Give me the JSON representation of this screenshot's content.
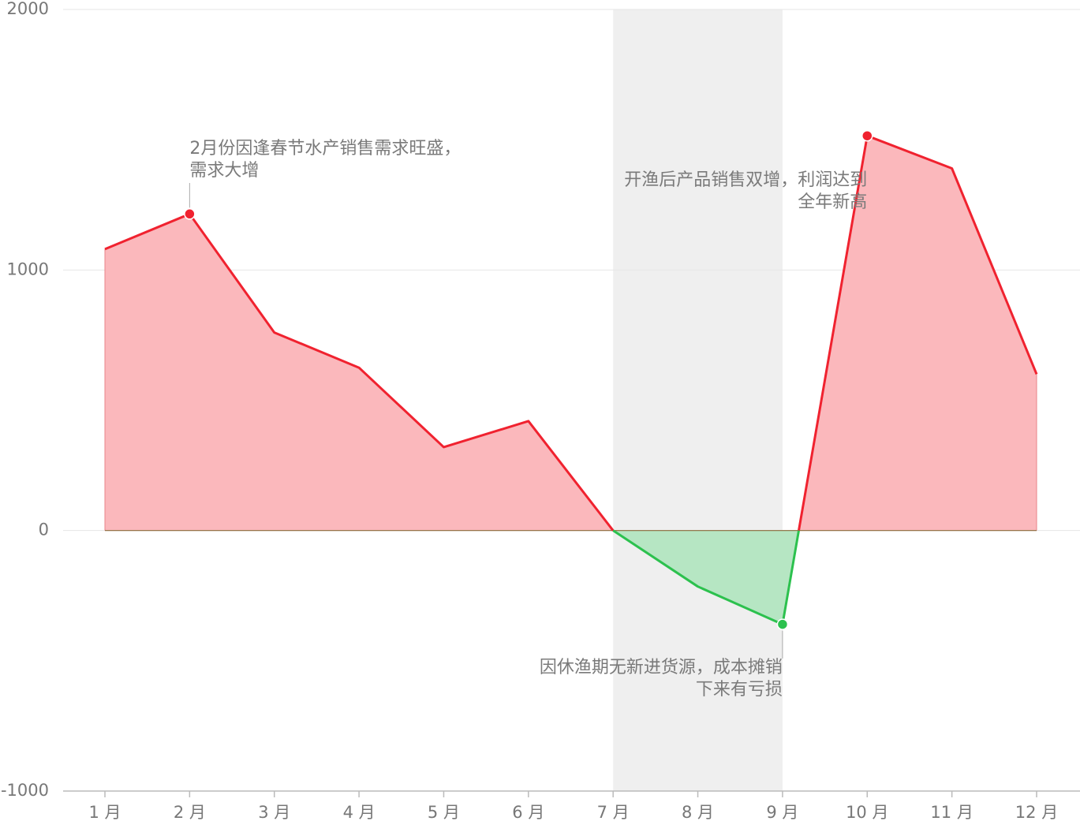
{
  "chart_data": {
    "type": "area",
    "categories": [
      "1 月",
      "2 月",
      "3 月",
      "4 月",
      "5 月",
      "6 月",
      "7 月",
      "8 月",
      "9 月",
      "10 月",
      "11 月",
      "12 月"
    ],
    "values": [
      1080,
      1215,
      760,
      625,
      320,
      420,
      0,
      -215,
      -360,
      1515,
      1390,
      600
    ],
    "ylim": [
      -1000,
      2000
    ],
    "yticks": [
      "-1000",
      "0",
      "1000",
      "2000"
    ],
    "grid": true,
    "colors": {
      "positive_line": "#f0222f",
      "positive_fill": "#fbb8bc",
      "negative_line": "#2cc14e",
      "negative_fill": "#b6e6c3",
      "highlight_region": "#efefef",
      "zero_line": "#8a6a3a",
      "grid": "#e6e6e6",
      "axis": "#bbbbbb"
    },
    "highlight_region": {
      "from": "7 月",
      "to": "9 月"
    },
    "markers": [
      {
        "category": "2 月",
        "value": 1215,
        "color": "#f0222f"
      },
      {
        "category": "9 月",
        "value": -360,
        "color": "#2cc14e"
      },
      {
        "category": "10 月",
        "value": 1515,
        "color": "#f0222f"
      }
    ],
    "annotations": [
      {
        "category": "2 月",
        "lines": [
          "2月份因逢春节水产销售需求旺盛，",
          "需求大增"
        ],
        "align": "left",
        "position": "above"
      },
      {
        "category": "10 月",
        "lines": [
          "开渔后产品销售双增，利润达到",
          "全年新高"
        ],
        "align": "right",
        "position": "left"
      },
      {
        "category": "9 月",
        "lines": [
          "因休渔期无新进货源，成本摊销",
          "下来有亏损"
        ],
        "align": "right",
        "position": "below"
      }
    ]
  }
}
